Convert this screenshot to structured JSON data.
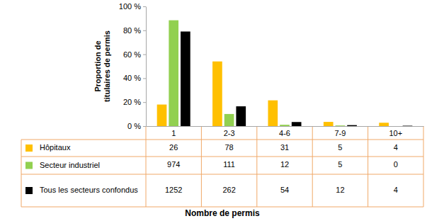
{
  "chart_data": {
    "type": "bar",
    "y_label": [
      "Proportion de",
      "titulaires de permis"
    ],
    "x_label": "Nombre de permis",
    "categories": [
      "1",
      "2-3",
      "4-6",
      "7-9",
      "10+"
    ],
    "series": [
      {
        "name": "Hôpitaux",
        "color": "#ffc000",
        "values": [
          18,
          54,
          21.5,
          3.5,
          2.8
        ],
        "counts": [
          26,
          78,
          31,
          5,
          4
        ]
      },
      {
        "name": "Secteur industriel",
        "color": "#92d050",
        "values": [
          88.4,
          10.1,
          1.1,
          0.5,
          0
        ],
        "counts": [
          974,
          111,
          12,
          5,
          0
        ]
      },
      {
        "name": "Tous les secteurs confondus",
        "color": "#000000",
        "values": [
          79,
          16.5,
          3.4,
          0.8,
          0.3
        ],
        "counts": [
          1252,
          262,
          54,
          12,
          4
        ]
      }
    ],
    "ylim": [
      0,
      100
    ],
    "yticks": [
      {
        "value": 0,
        "label": "0 %"
      },
      {
        "value": 20,
        "label": "20 %"
      },
      {
        "value": 40,
        "label": "40 %"
      },
      {
        "value": 60,
        "label": "60 %"
      },
      {
        "value": 80,
        "label": "80 %"
      },
      {
        "value": 100,
        "label": "100 %"
      }
    ],
    "grid": false,
    "data_labels": false
  }
}
